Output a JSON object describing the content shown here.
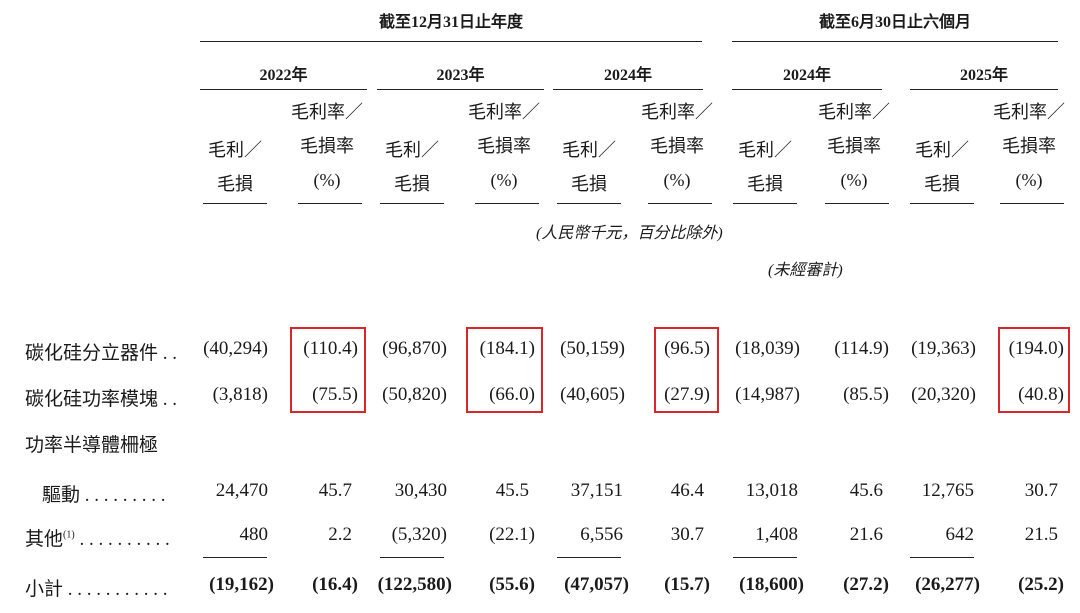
{
  "header": {
    "group_annual": "截至12月31日止年度",
    "group_interim": "截至6月30日止六個月"
  },
  "years": [
    "2022年",
    "2023年",
    "2024年",
    "2024年",
    "2025年"
  ],
  "subheads": {
    "gp_line1": "毛利／",
    "gp_line2": "毛損",
    "gm_line1": "毛利率／",
    "gm_line2": "毛損率",
    "gm_line3": "(%)"
  },
  "notes": {
    "unit": "(人民幣千元，百分比除外)",
    "unaudited": "(未經審計)"
  },
  "rows": [
    {
      "label": "碳化硅分立器件 . .",
      "values": [
        "(40,294)",
        "(110.4)",
        "(96,870)",
        "(184.1)",
        "(50,159)",
        "(96.5)",
        "(18,039)",
        "(114.9)",
        "(19,363)",
        "(194.0)"
      ]
    },
    {
      "label": "碳化硅功率模塊 . .",
      "values": [
        "(3,818)",
        "(75.5)",
        "(50,820)",
        "(66.0)",
        "(40,605)",
        "(27.9)",
        "(14,987)",
        "(85.5)",
        "(20,320)",
        "(40.8)"
      ]
    },
    {
      "label_line1": "功率半導體柵極",
      "label_line2": "驅動 . . . . . . . . .",
      "values": [
        "24,470",
        "45.7",
        "30,430",
        "45.5",
        "37,151",
        "46.4",
        "13,018",
        "45.6",
        "12,765",
        "30.7"
      ]
    },
    {
      "label": "其他",
      "footnote": "(1)",
      "label_dots": " . . . . . . . . . .",
      "values": [
        "480",
        "2.2",
        "(5,320)",
        "(22.1)",
        "6,556",
        "30.7",
        "1,408",
        "21.6",
        "642",
        "21.5"
      ]
    },
    {
      "label": "小計 . . . . . . . . . . .",
      "values": [
        "(19,162)",
        "(16.4)",
        "(122,580)",
        "(55.6)",
        "(47,057)",
        "(15.7)",
        "(18,600)",
        "(27.2)",
        "(26,277)",
        "(25.2)"
      ]
    }
  ]
}
